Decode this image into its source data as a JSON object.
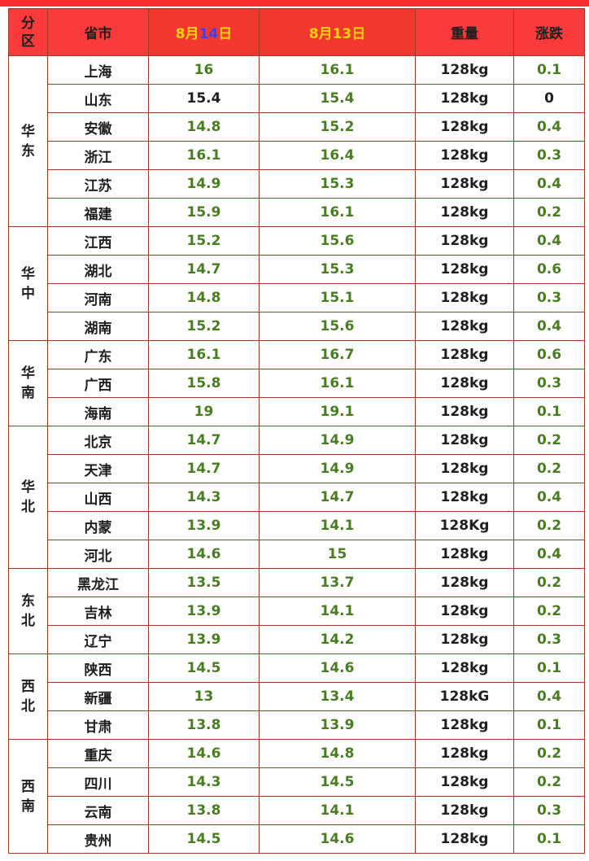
{
  "header": {
    "region": "分区",
    "province": "省市",
    "date1_month": "8月",
    "date1_day": "14",
    "date1_suffix": "日",
    "date2": "8月13日",
    "weight": "重量",
    "change": "涨跌"
  },
  "regions": [
    {
      "name": "华东",
      "rows": [
        {
          "province": "上海",
          "today": "16",
          "yesterday": "16.1",
          "weight": "128kg",
          "change": "0.1"
        },
        {
          "province": "山东",
          "today": "15.4",
          "yesterday": "15.4",
          "weight": "128kg",
          "change": "0"
        },
        {
          "province": "安徽",
          "today": "14.8",
          "yesterday": "15.2",
          "weight": "128kg",
          "change": "0.4"
        },
        {
          "province": "浙江",
          "today": "16.1",
          "yesterday": "16.4",
          "weight": "128kg",
          "change": "0.3"
        },
        {
          "province": "江苏",
          "today": "14.9",
          "yesterday": "15.3",
          "weight": "128kg",
          "change": "0.4"
        },
        {
          "province": "福建",
          "today": "15.9",
          "yesterday": "16.1",
          "weight": "128kg",
          "change": "0.2"
        }
      ]
    },
    {
      "name": "华中",
      "rows": [
        {
          "province": "江西",
          "today": "15.2",
          "yesterday": "15.6",
          "weight": "128kg",
          "change": "0.4"
        },
        {
          "province": "湖北",
          "today": "14.7",
          "yesterday": "15.3",
          "weight": "128kg",
          "change": "0.6"
        },
        {
          "province": "河南",
          "today": "14.8",
          "yesterday": "15.1",
          "weight": "128kg",
          "change": "0.3"
        },
        {
          "province": "湖南",
          "today": "15.2",
          "yesterday": "15.6",
          "weight": "128kg",
          "change": "0.4"
        }
      ]
    },
    {
      "name": "华南",
      "rows": [
        {
          "province": "广东",
          "today": "16.1",
          "yesterday": "16.7",
          "weight": "128kg",
          "change": "0.6"
        },
        {
          "province": "广西",
          "today": "15.8",
          "yesterday": "16.1",
          "weight": "128kg",
          "change": "0.3"
        },
        {
          "province": "海南",
          "today": "19",
          "yesterday": "19.1",
          "weight": "128kg",
          "change": "0.1"
        }
      ]
    },
    {
      "name": "华北",
      "rows": [
        {
          "province": "北京",
          "today": "14.7",
          "yesterday": "14.9",
          "weight": "128kg",
          "change": "0.2"
        },
        {
          "province": "天津",
          "today": "14.7",
          "yesterday": "14.9",
          "weight": "128kg",
          "change": "0.2"
        },
        {
          "province": "山西",
          "today": "14.3",
          "yesterday": "14.7",
          "weight": "128kg",
          "change": "0.4"
        },
        {
          "province": "内蒙",
          "today": "13.9",
          "yesterday": "14.1",
          "weight": "128Kg",
          "change": "0.2"
        },
        {
          "province": "河北",
          "today": "14.6",
          "yesterday": "15",
          "weight": "128kg",
          "change": "0.4"
        }
      ]
    },
    {
      "name": "东北",
      "rows": [
        {
          "province": "黑龙江",
          "today": "13.5",
          "yesterday": "13.7",
          "weight": "128kg",
          "change": "0.2"
        },
        {
          "province": "吉林",
          "today": "13.9",
          "yesterday": "14.1",
          "weight": "128kg",
          "change": "0.2"
        },
        {
          "province": "辽宁",
          "today": "13.9",
          "yesterday": "14.2",
          "weight": "128kg",
          "change": "0.3"
        }
      ]
    },
    {
      "name": "西北",
      "rows": [
        {
          "province": "陕西",
          "today": "14.5",
          "yesterday": "14.6",
          "weight": "128kg",
          "change": "0.1"
        },
        {
          "province": "新疆",
          "today": "13",
          "yesterday": "13.4",
          "weight": "128kG",
          "change": "0.4"
        },
        {
          "province": "甘肃",
          "today": "13.8",
          "yesterday": "13.9",
          "weight": "128kg",
          "change": "0.1"
        }
      ]
    },
    {
      "name": "西南",
      "rows": [
        {
          "province": "重庆",
          "today": "14.6",
          "yesterday": "14.8",
          "weight": "128kg",
          "change": "0.2"
        },
        {
          "province": "四川",
          "today": "14.3",
          "yesterday": "14.5",
          "weight": "128kg",
          "change": "0.2"
        },
        {
          "province": "云南",
          "today": "13.8",
          "yesterday": "14.1",
          "weight": "128kg",
          "change": "0.3"
        },
        {
          "province": "贵州",
          "today": "14.5",
          "yesterday": "14.6",
          "weight": "128kg",
          "change": "0.1"
        }
      ]
    }
  ],
  "colors": {
    "header_bg": "#fb3b3b",
    "header_highlight": "#ffd400",
    "header_day_blue": "#2f48ff",
    "value_green": "#4a7d22",
    "border": "#9c3a2a"
  }
}
